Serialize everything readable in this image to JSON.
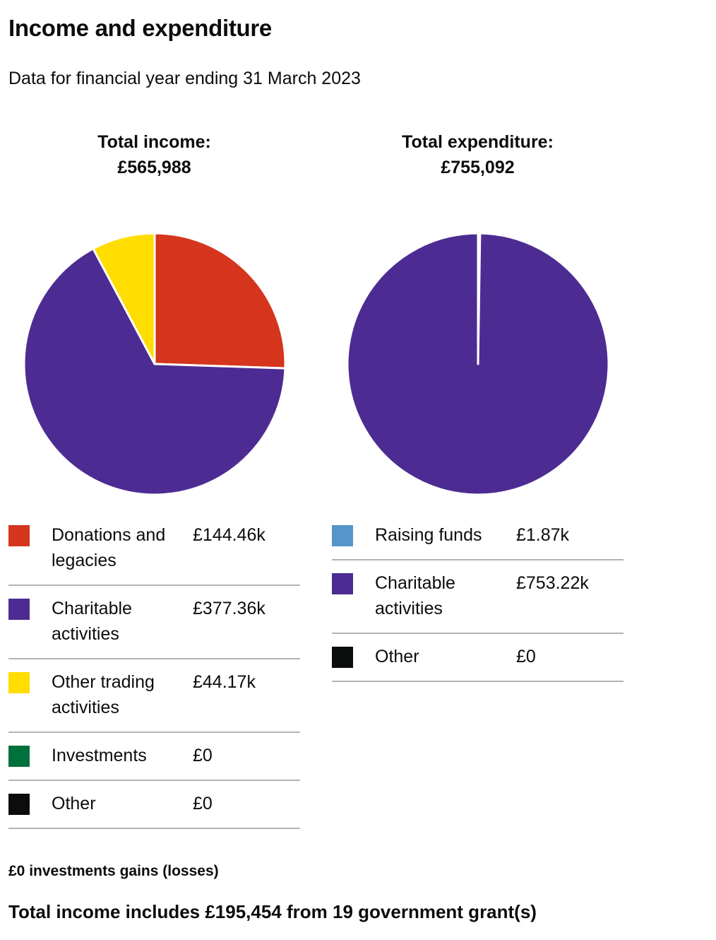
{
  "title": "Income and expenditure",
  "subtitle": "Data for financial year ending 31 March 2023",
  "income": {
    "heading_line1": "Total income:",
    "heading_line2": "£565,988"
  },
  "expenditure": {
    "heading_line1": "Total expenditure:",
    "heading_line2": "£755,092"
  },
  "chart_data": [
    {
      "type": "pie",
      "total": 565988,
      "slices": [
        {
          "label": "Donations and legacies",
          "value": 144460,
          "display": "£144.46k",
          "color": "#d4351c"
        },
        {
          "label": "Charitable activities",
          "value": 377360,
          "display": "£377.36k",
          "color": "#4c2c92"
        },
        {
          "label": "Other trading activities",
          "value": 44170,
          "display": "£44.17k",
          "color": "#ffdd00"
        },
        {
          "label": "Investments",
          "value": 0,
          "display": "£0",
          "color": "#00703c"
        },
        {
          "label": "Other",
          "value": 0,
          "display": "£0",
          "color": "#0b0c0c"
        }
      ]
    },
    {
      "type": "pie",
      "total": 755092,
      "slices": [
        {
          "label": "Raising funds",
          "value": 1870,
          "display": "£1.87k",
          "color": "#5694ca"
        },
        {
          "label": "Charitable activities",
          "value": 753220,
          "display": "£753.22k",
          "color": "#4c2c92"
        },
        {
          "label": "Other",
          "value": 0,
          "display": "£0",
          "color": "#0b0c0c"
        }
      ]
    }
  ],
  "notes": {
    "investment_gains": "£0 investments gains (losses)",
    "government_grants": "Total income includes £195,454 from 19 government grant(s)"
  }
}
